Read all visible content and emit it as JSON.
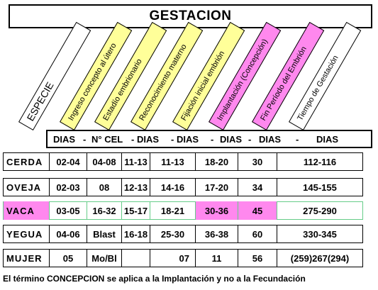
{
  "title": "GESTACION",
  "colors": {
    "yellow": "#ffff99",
    "pink": "#ff88ee",
    "white": "#ffffff",
    "vaca_border": "#66cc88"
  },
  "headers": [
    "ESPECIE",
    "Ingreso concepto al útero",
    "Estadío embrionario",
    "Reconocimiento materno",
    "Fijación  inicial embrión",
    "Implantación (Concepción)",
    "Fin Período del Embrión",
    "Tiempo de Gestación"
  ],
  "units": [
    "DIAS",
    "-",
    "N° CEL",
    "- DIAS",
    "- DIAS",
    "-",
    "DIAS",
    "-",
    "DIAS",
    "-",
    "DIAS"
  ],
  "rows": [
    {
      "species": "CERDA",
      "cells": [
        "02-04",
        "04-08",
        "11-13",
        "11-13",
        "18-20",
        "30",
        "112-116"
      ]
    },
    {
      "species": "OVEJA",
      "cells": [
        "02-03",
        "08",
        "12-13",
        "14-16",
        "17-20",
        "34",
        "145-155"
      ]
    },
    {
      "species": "VACA",
      "cells": [
        "03-05",
        "16-32",
        "15-17",
        "18-21",
        "30-36",
        "45",
        "275-290"
      ]
    },
    {
      "species": "YEGUA",
      "cells": [
        "04-06",
        "Blast",
        "16-18",
        "25-30",
        "36-38",
        "60",
        "330-345"
      ]
    },
    {
      "species": "MUJER",
      "cells": [
        "05",
        "Mo/Bl",
        "",
        "07",
        "11",
        "56",
        "(259)267(294)"
      ]
    }
  ],
  "footer": "El término CONCEPCION se aplica a la Implantación y no a la Fecundación"
}
